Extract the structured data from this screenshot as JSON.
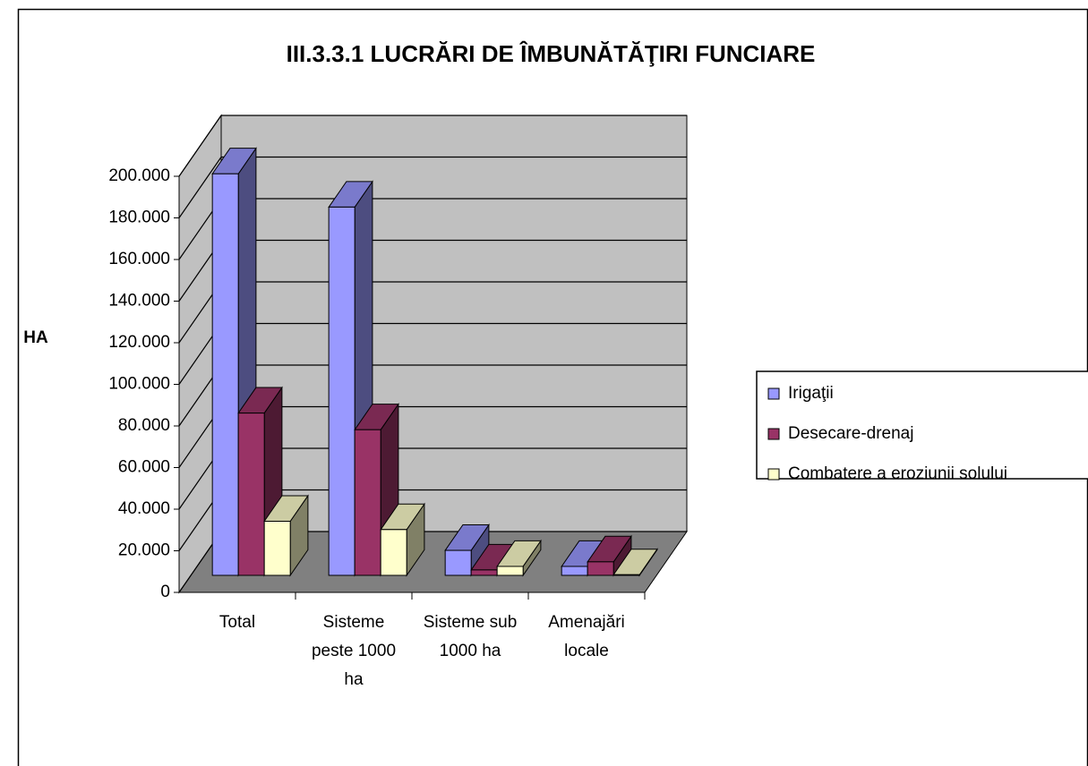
{
  "chart_data": {
    "type": "bar3d",
    "title": "III.3.3.1 LUCRĂRI DE ÎMBUNĂTĂŢIRI FUNCIARE",
    "y_label": "HA",
    "categories": [
      "Total",
      "Sisteme peste 1000 ha",
      "Sisteme sub 1000 ha",
      "Amenajări locale"
    ],
    "series": [
      {
        "name": "Irigaţii",
        "color": "#9999ff",
        "values": [
          193000,
          177000,
          12000,
          4300
        ]
      },
      {
        "name": "Desecare-drenaj",
        "color": "#993366",
        "values": [
          78000,
          70000,
          2600,
          6500
        ]
      },
      {
        "name": "Combatere a eroziunii solului",
        "color": "#ffffcc",
        "values": [
          26000,
          22000,
          4300,
          300
        ]
      }
    ],
    "ylim": [
      0,
      200000
    ],
    "yticks": [
      0,
      {
        "value": 20000,
        "label": "20.000"
      },
      {
        "value": 40000,
        "label": "40.000"
      },
      {
        "value": 60000,
        "label": "60.000"
      },
      {
        "value": 80000,
        "label": "80.000"
      },
      {
        "value": 100000,
        "label": "100.000"
      },
      {
        "value": 120000,
        "label": "120.000"
      },
      {
        "value": 140000,
        "label": "140.000"
      },
      {
        "value": 160000,
        "label": "160.000"
      },
      {
        "value": 180000,
        "label": "180.000"
      },
      {
        "value": 200000,
        "label": "200.000"
      }
    ],
    "grid": true,
    "legend": "right"
  }
}
